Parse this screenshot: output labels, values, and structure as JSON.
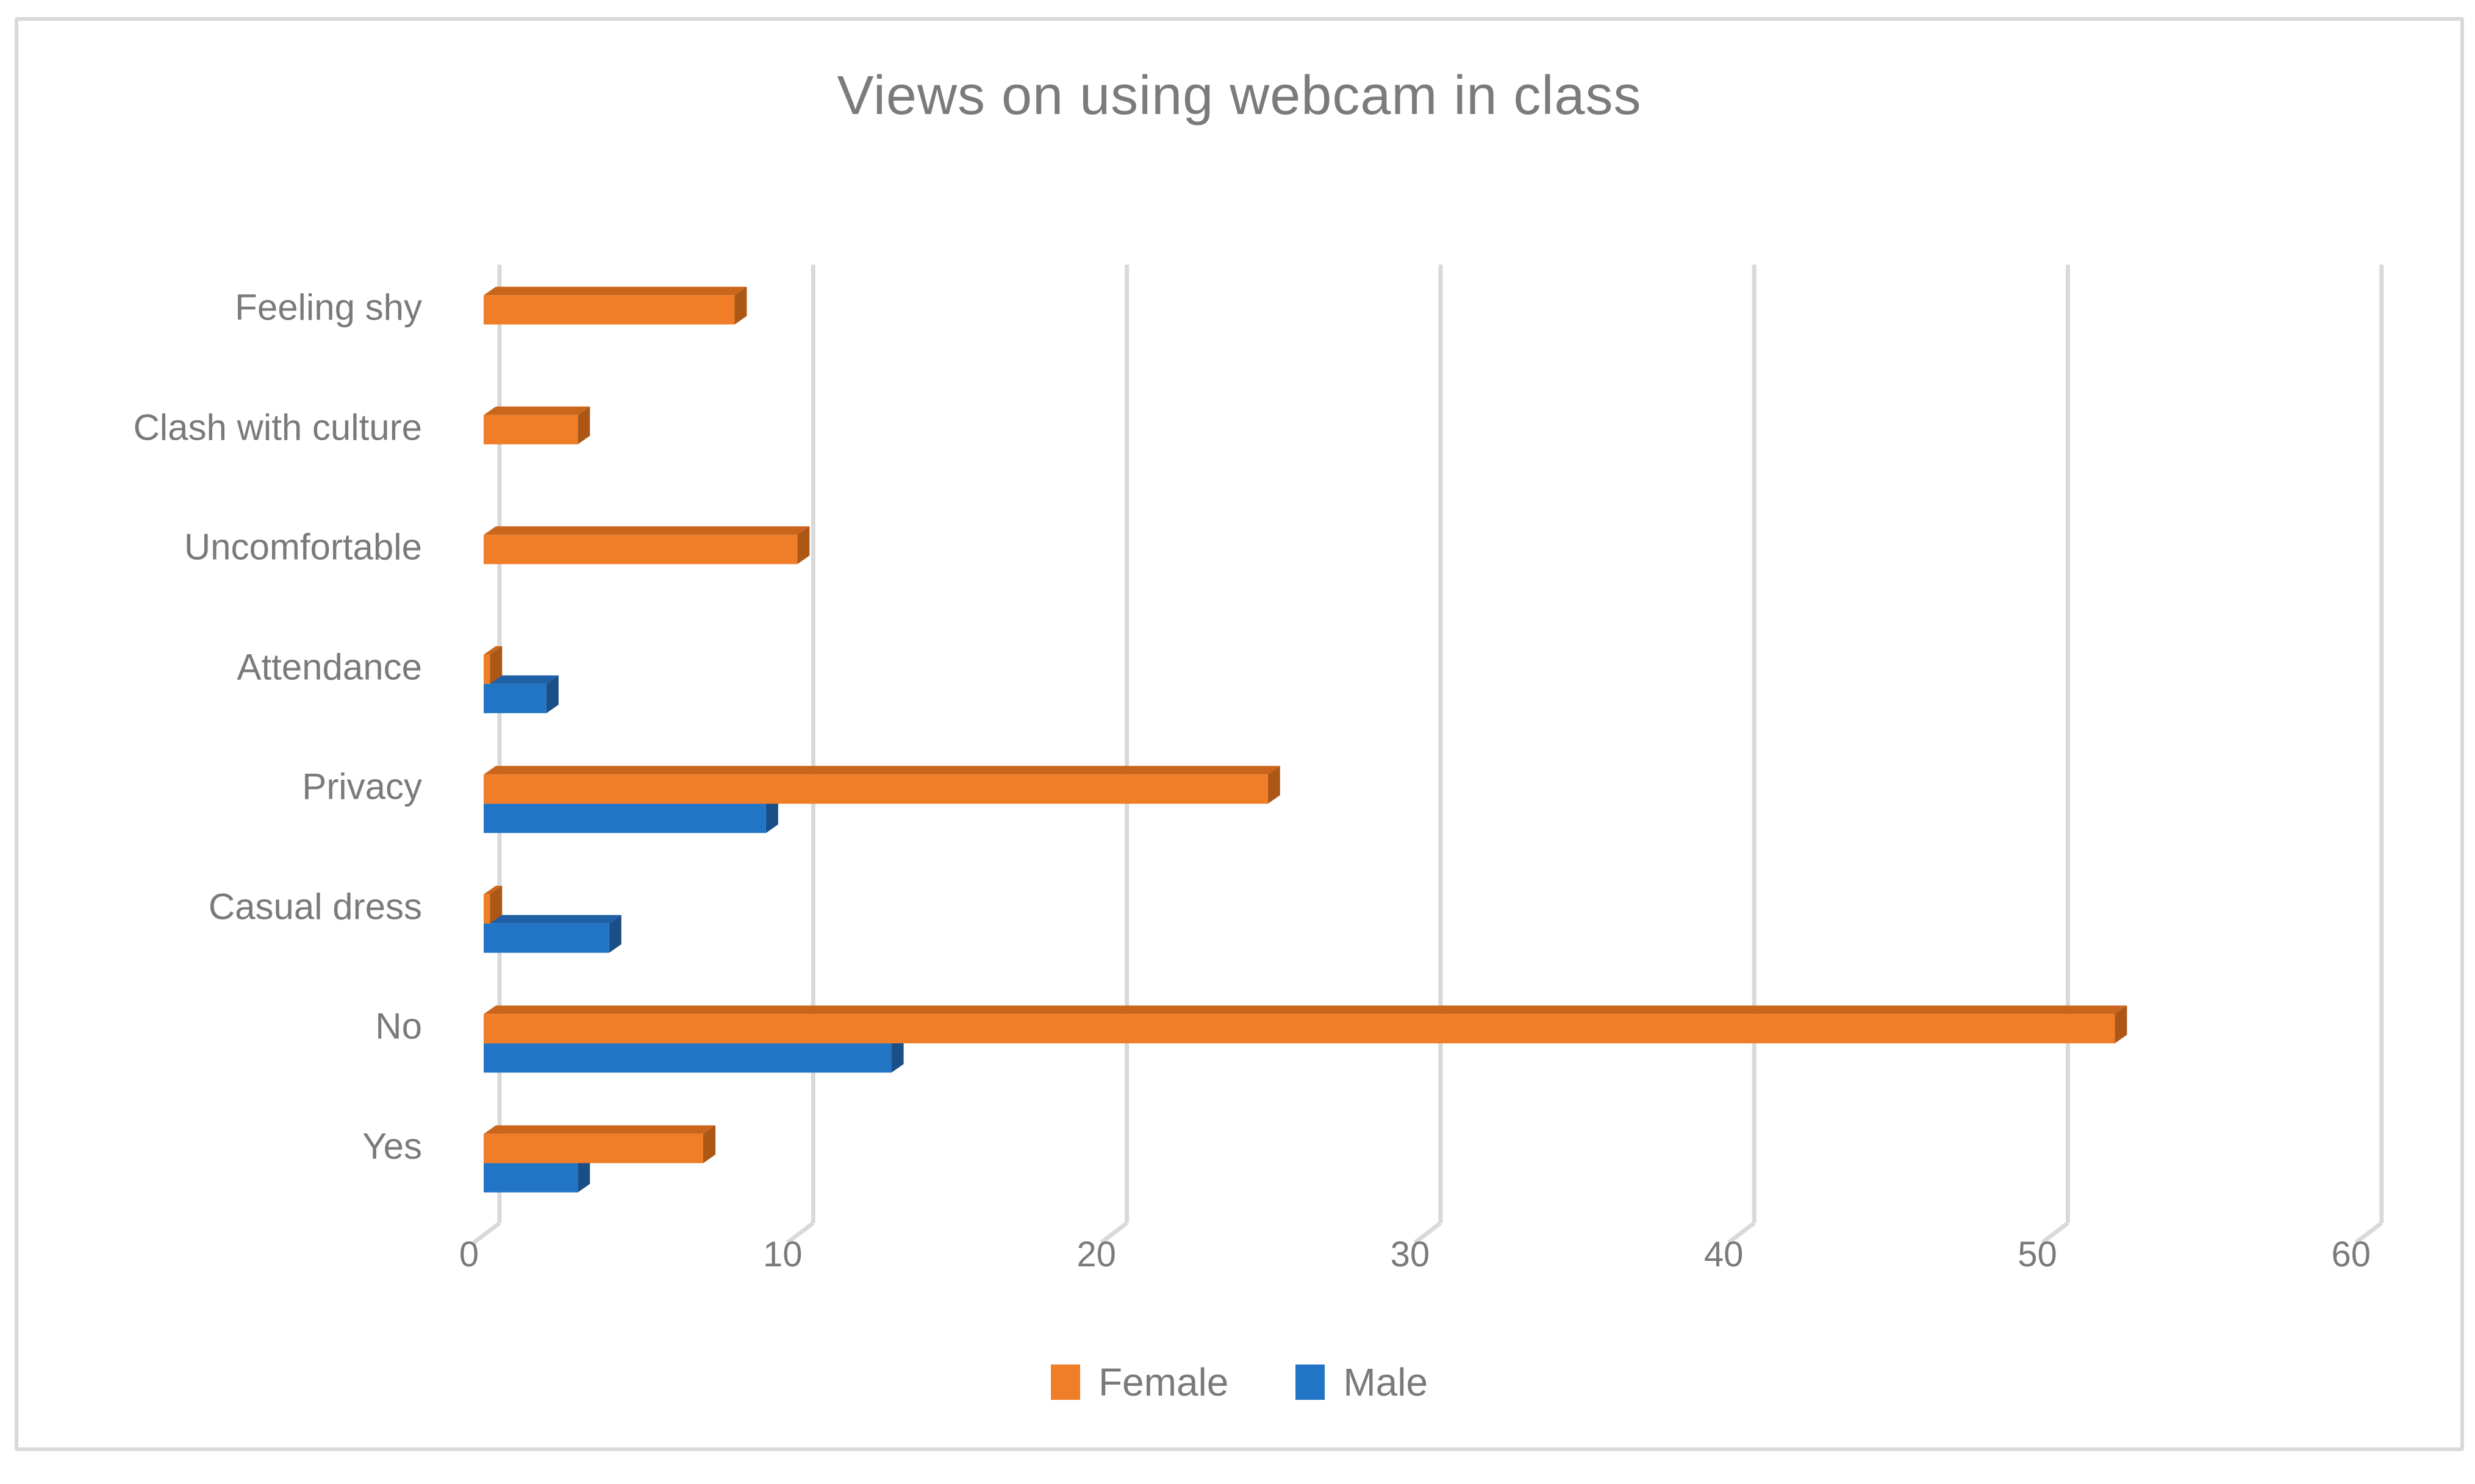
{
  "chart_data": {
    "type": "bar",
    "orientation": "horizontal",
    "style": "3d-clustered",
    "title": "Views on using webcam in class",
    "categories": [
      "Feeling shy",
      "Clash with culture",
      "Uncomfortable",
      "Attendance",
      "Privacy",
      "Casual dress",
      "No",
      "Yes"
    ],
    "series": [
      {
        "name": "Female",
        "values": [
          8,
          3,
          10,
          0.2,
          25,
          0.2,
          52,
          7
        ],
        "color": "#F07E29",
        "color_top": "#C9661C",
        "color_side": "#AC5716"
      },
      {
        "name": "Male",
        "values": [
          0,
          0,
          0,
          2,
          9,
          4,
          13,
          3
        ],
        "color": "#2275C5",
        "color_top": "#1E5FA6",
        "color_side": "#1A4E86"
      }
    ],
    "xlim": [
      0,
      60
    ],
    "xticks": [
      0,
      10,
      20,
      30,
      40,
      50,
      60
    ],
    "grid": "vertical",
    "legend_position": "bottom",
    "colors": {
      "gridline": "#D9D9D9",
      "axis_text": "#7A7A7A",
      "title_text": "#7B7B7B",
      "frame_border": "#D9D9D9",
      "background": "#FFFFFF"
    }
  }
}
